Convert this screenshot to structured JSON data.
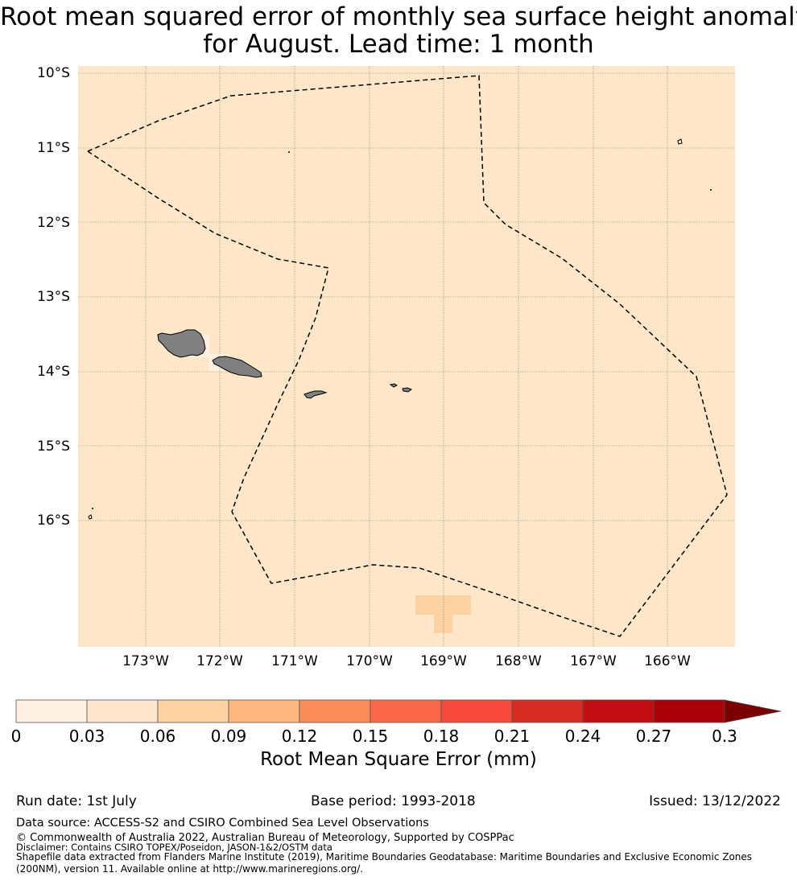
{
  "title": {
    "line1": "Root mean squared error of monthly sea surface height anomaly",
    "line2": "for August. Lead time: 1 month"
  },
  "map": {
    "background_color": "#fde7c8",
    "land_color": "#808080",
    "lat_labels": [
      "10°S",
      "11°S",
      "12°S",
      "13°S",
      "14°S",
      "15°S",
      "16°S"
    ],
    "lon_labels": [
      "173°W",
      "172°W",
      "171°W",
      "170°W",
      "169°W",
      "168°W",
      "167°W",
      "166°W"
    ],
    "gridlines": true,
    "eez_boundary_style": "dashed black"
  },
  "colorbar": {
    "ticks": [
      "0",
      "0.03",
      "0.06",
      "0.09",
      "0.12",
      "0.15",
      "0.18",
      "0.21",
      "0.24",
      "0.27",
      "0.3"
    ],
    "colors": [
      "#fff1e0",
      "#fee6ce",
      "#fdd2a2",
      "#fdb77f",
      "#fc8d59",
      "#fc6847",
      "#f94a3c",
      "#d72c1f",
      "#c40e14",
      "#a90105",
      "#7b0000"
    ],
    "label": "Root Mean Square Error (mm)",
    "extend": "max"
  },
  "footer": {
    "run_date": "Run date: 1st July",
    "base_period": "Base period: 1993-2018",
    "issued": "Issued: 13/12/2022",
    "data_source": "Data source: ACCESS-S2 and CSIRO Combined Sea Level Observations",
    "copyright": "© Commonwealth of Australia 2022, Australian Bureau of Meteorology, Supported by COSPPac",
    "disclaimer": "Disclaimer: Contains CSIRO TOPEX/Poseidon, JASON-1&2/OSTM data",
    "shapefile": "Shapefile data extracted from Flanders Marine Institute (2019), Maritime Boundaries Geodatabase: Maritime Boundaries and Exclusive Economic Zones (200NM), version 11. Available online at http://www.marineregions.org/."
  }
}
